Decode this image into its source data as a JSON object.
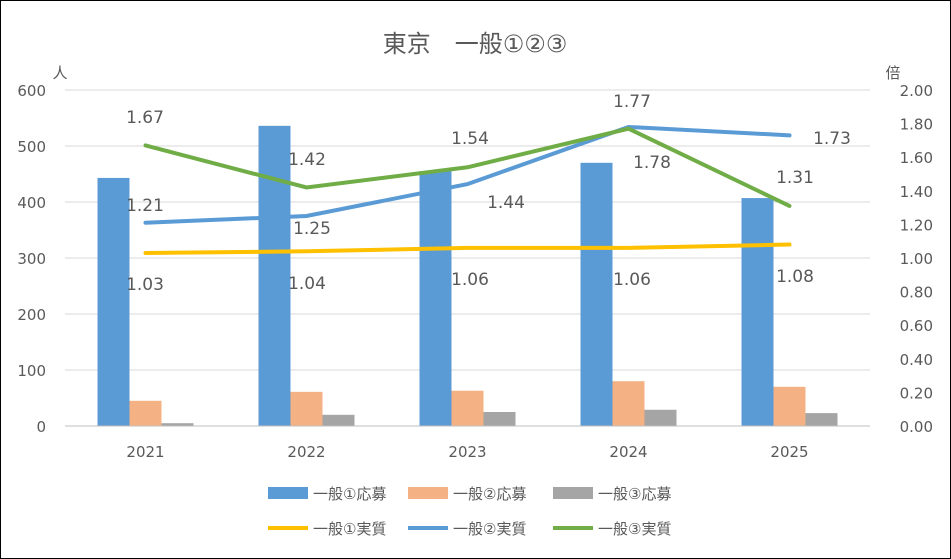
{
  "chart_data": {
    "type": "bar+line",
    "title": "東京　一般①②③",
    "ylabel_left": "人",
    "ylabel_right": "倍",
    "categories": [
      "2021",
      "2022",
      "2023",
      "2024",
      "2025"
    ],
    "ylim_left": [
      0,
      600
    ],
    "ylim_right": [
      0,
      2.0
    ],
    "left_ticks": [
      "0",
      "100",
      "200",
      "300",
      "400",
      "500",
      "600"
    ],
    "right_ticks": [
      "0.00",
      "0.20",
      "0.40",
      "0.60",
      "0.80",
      "1.00",
      "1.20",
      "1.40",
      "1.60",
      "1.80",
      "2.00"
    ],
    "grid": true,
    "legend_placement": "bottom",
    "bar_series": [
      {
        "name": "一般①応募",
        "color": "#5B9BD5",
        "values": [
          443,
          536,
          455,
          470,
          407
        ]
      },
      {
        "name": "一般②応募",
        "color": "#F4B183",
        "values": [
          45,
          61,
          63,
          80,
          70
        ]
      },
      {
        "name": "一般③応募",
        "color": "#A5A5A5",
        "values": [
          5,
          20,
          25,
          29,
          23
        ]
      }
    ],
    "line_series": [
      {
        "name": "一般①実質",
        "color": "#FFC000",
        "values": [
          1.03,
          1.04,
          1.06,
          1.06,
          1.08
        ],
        "labels": [
          "1.03",
          "1.04",
          "1.06",
          "1.06",
          "1.08"
        ]
      },
      {
        "name": "一般②実質",
        "color": "#5B9BD5",
        "values": [
          1.21,
          1.25,
          1.44,
          1.78,
          1.73
        ],
        "labels": [
          "1.21",
          "1.25",
          "1.44",
          "1.78",
          "1.73"
        ]
      },
      {
        "name": "一般③実質",
        "color": "#70AD47",
        "values": [
          1.67,
          1.42,
          1.54,
          1.77,
          1.31
        ],
        "labels": [
          "1.67",
          "1.42",
          "1.54",
          "1.77",
          "1.31"
        ]
      }
    ]
  }
}
